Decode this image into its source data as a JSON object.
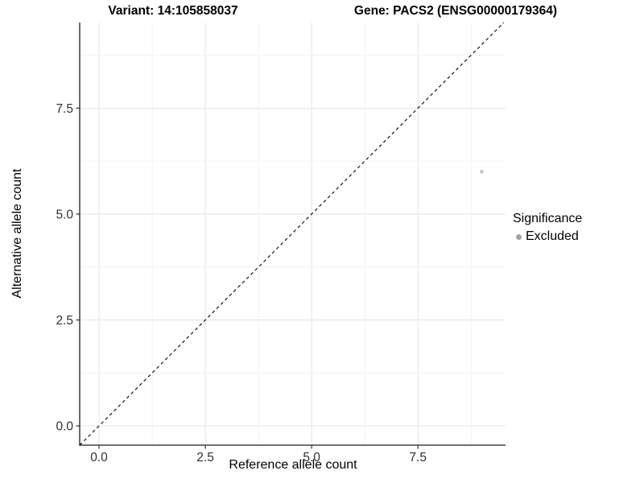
{
  "titles": {
    "left": "Variant: 14:105858037",
    "right": "Gene: PACS2 (ENSG00000179364)"
  },
  "legend": {
    "title": "Significance",
    "position": "right",
    "entries": [
      {
        "label": "Excluded",
        "color": "#a3a3a3"
      }
    ]
  },
  "colors": {
    "background": "#ffffff",
    "point": "#c5c5c5",
    "legend_dot": "#a3a3a3",
    "grid_major": "#e4e4e4",
    "grid_minor": "#f1f1f1",
    "axis_line": "#1a1a1a",
    "tick_mark": "#333333",
    "tick_label": "#303030",
    "reference_line": "#000000"
  },
  "chart_data": {
    "type": "scatter",
    "title": "Variant: 14:105858037  /  Gene: PACS2 (ENSG00000179364)",
    "xlabel": "Reference allele count",
    "ylabel": "Alternative allele count",
    "x_ticks": [
      0,
      2.5,
      5,
      7.5
    ],
    "x_tick_labels": [
      "0.0",
      "2.5",
      "5.0",
      "7.5"
    ],
    "y_ticks": [
      0,
      2.5,
      5,
      7.5
    ],
    "y_tick_labels": [
      "0.0",
      "2.5",
      "5.0",
      "7.5"
    ],
    "xlim": [
      -0.455,
      9.56
    ],
    "ylim": [
      -0.455,
      9.52
    ],
    "grid": {
      "major": true,
      "minor": true,
      "minor_step_fraction": 0.5
    },
    "series": [
      {
        "name": "Excluded",
        "points": [
          {
            "x": 9,
            "y": 6
          }
        ]
      }
    ],
    "reference_line": {
      "kind": "identity",
      "slope": 1,
      "intercept": 0,
      "style": "dashed"
    },
    "legend_position": "right"
  }
}
